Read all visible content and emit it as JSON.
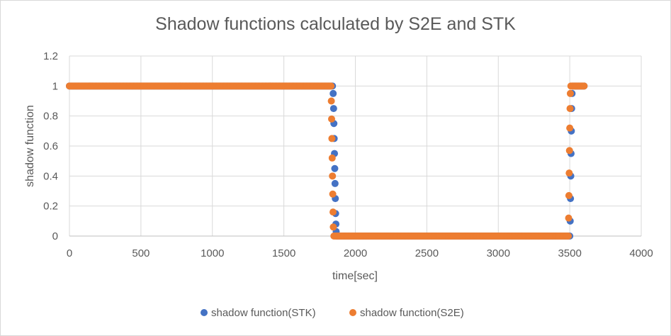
{
  "chart_data": {
    "type": "scatter",
    "title": "Shadow functions calculated by S2E and STK",
    "xlabel": "time[sec]",
    "ylabel": "shadow function",
    "xlim": [
      0,
      4000
    ],
    "ylim": [
      0,
      1.2
    ],
    "x_ticks": [
      0,
      500,
      1000,
      1500,
      2000,
      2500,
      3000,
      3500,
      4000
    ],
    "y_ticks": [
      0,
      0.2,
      0.4,
      0.6,
      0.8,
      1,
      1.2
    ],
    "x_tick_labels": [
      "0",
      "500",
      "1000",
      "1500",
      "2000",
      "2500",
      "3000",
      "3500",
      "4000"
    ],
    "y_tick_labels": [
      "0",
      "0.2",
      "0.4",
      "0.6",
      "0.8",
      "1",
      "1.2"
    ],
    "grid": true,
    "legend_position": "bottom",
    "series": [
      {
        "name": "shadow function(STK)",
        "color": "#4472c4",
        "marker": "circle",
        "points": [
          [
            0,
            1
          ],
          [
            1840,
            1
          ],
          [
            1845,
            0.95
          ],
          [
            1848,
            0.85
          ],
          [
            1850,
            0.75
          ],
          [
            1852,
            0.65
          ],
          [
            1854,
            0.55
          ],
          [
            1856,
            0.45
          ],
          [
            1858,
            0.35
          ],
          [
            1860,
            0.25
          ],
          [
            1862,
            0.15
          ],
          [
            1864,
            0.08
          ],
          [
            1866,
            0.03
          ],
          [
            1870,
            0
          ],
          [
            3500,
            0
          ],
          [
            3503,
            0.1
          ],
          [
            3505,
            0.25
          ],
          [
            3507,
            0.4
          ],
          [
            3509,
            0.55
          ],
          [
            3511,
            0.7
          ],
          [
            3513,
            0.85
          ],
          [
            3516,
            0.95
          ],
          [
            3520,
            1
          ],
          [
            3600,
            1
          ]
        ]
      },
      {
        "name": "shadow function(S2E)",
        "color": "#ed7d31",
        "marker": "circle",
        "points": [
          [
            0,
            1
          ],
          [
            1830,
            1
          ],
          [
            1832,
            0.9
          ],
          [
            1834,
            0.78
          ],
          [
            1836,
            0.65
          ],
          [
            1838,
            0.52
          ],
          [
            1840,
            0.4
          ],
          [
            1842,
            0.28
          ],
          [
            1844,
            0.16
          ],
          [
            1846,
            0.06
          ],
          [
            1850,
            0
          ],
          [
            3490,
            0
          ],
          [
            3492,
            0.12
          ],
          [
            3494,
            0.27
          ],
          [
            3496,
            0.42
          ],
          [
            3498,
            0.57
          ],
          [
            3500,
            0.72
          ],
          [
            3502,
            0.85
          ],
          [
            3504,
            0.95
          ],
          [
            3508,
            1
          ],
          [
            3600,
            1
          ]
        ]
      }
    ]
  }
}
